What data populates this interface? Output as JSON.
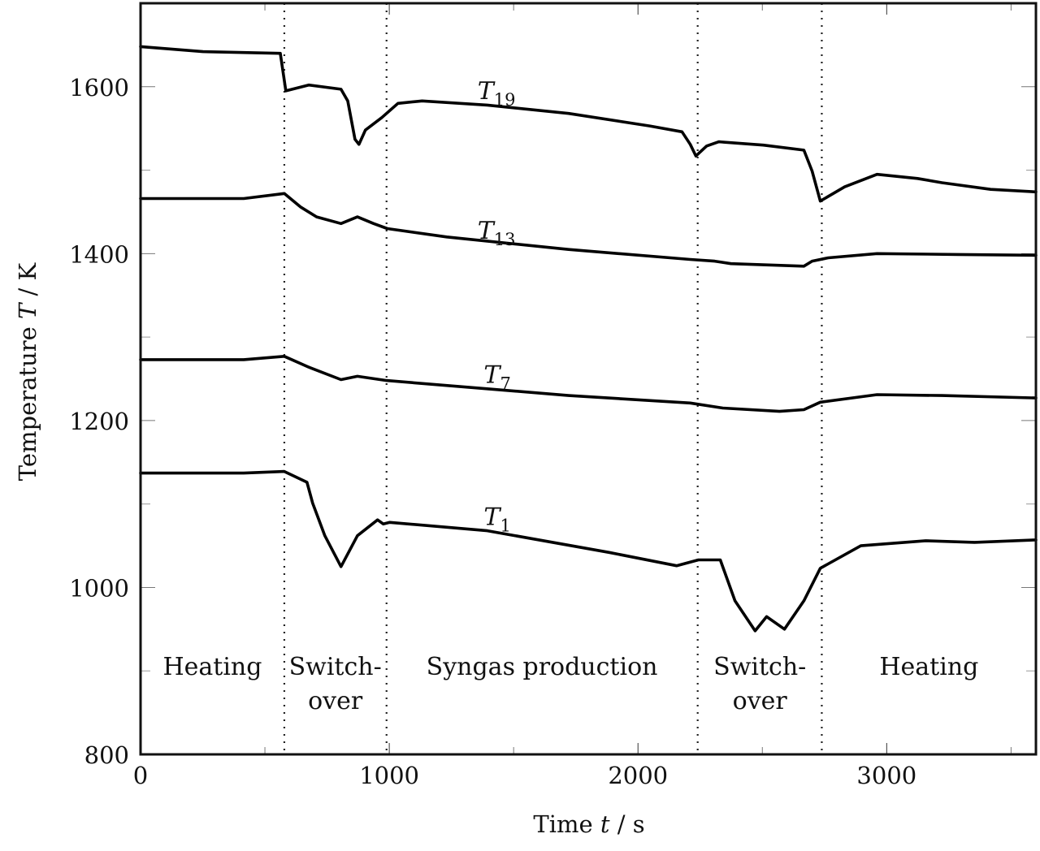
{
  "chart_data": {
    "type": "line",
    "title": "",
    "xlabel": {
      "prefix": "Time ",
      "var": "t",
      "suffix": " / s"
    },
    "ylabel": {
      "prefix": "Temperature ",
      "var": "T",
      "suffix": " / K"
    },
    "xlim": [
      0,
      3600
    ],
    "ylim": [
      800,
      1700
    ],
    "grid": false,
    "x_ticks": [
      0,
      1000,
      2000,
      3000
    ],
    "x_minor_ticks": [
      500,
      1500,
      2500,
      3500
    ],
    "y_ticks": [
      800,
      1000,
      1200,
      1400,
      1600
    ],
    "y_minor_ticks": [
      900,
      1100,
      1300,
      1500,
      1700
    ],
    "phase_boundaries": [
      578,
      989,
      2240,
      2739
    ],
    "phases": [
      {
        "lines": [
          "Heating"
        ],
        "t": 289,
        "T": 905
      },
      {
        "lines": [
          "Switch-",
          "over"
        ],
        "t": 783,
        "T": 905
      },
      {
        "lines": [
          "Syngas production"
        ],
        "t": 1614,
        "T": 905
      },
      {
        "lines": [
          "Switch-",
          "over"
        ],
        "t": 2490,
        "T": 905
      },
      {
        "lines": [
          "Heating"
        ],
        "t": 3170,
        "T": 905
      }
    ],
    "series": [
      {
        "name": "T19",
        "base": "T",
        "sub": "19",
        "label_at": {
          "t": 1355,
          "T": 1585
        },
        "x": [
          0,
          251,
          562,
          584,
          676,
          806,
          833,
          862,
          878,
          904,
          970,
          1035,
          1132,
          1394,
          1721,
          2047,
          2177,
          2210,
          2233,
          2276,
          2325,
          2504,
          2667,
          2700,
          2733,
          2831,
          2961,
          3124,
          3222,
          3418,
          3600
        ],
        "values": [
          1648,
          1642,
          1640,
          1595,
          1602,
          1597,
          1583,
          1537,
          1531,
          1548,
          1563,
          1580,
          1583,
          1578,
          1568,
          1553,
          1546,
          1531,
          1517,
          1529,
          1534,
          1530,
          1524,
          1499,
          1463,
          1480,
          1495,
          1490,
          1485,
          1477,
          1474
        ]
      },
      {
        "name": "T13",
        "base": "T",
        "sub": "13",
        "label_at": {
          "t": 1355,
          "T": 1418
        },
        "x": [
          0,
          415,
          578,
          643,
          708,
          806,
          872,
          937,
          992,
          1231,
          1721,
          2210,
          2308,
          2374,
          2667,
          2700,
          2765,
          2961,
          3288,
          3600
        ],
        "values": [
          1466,
          1466,
          1472,
          1456,
          1444,
          1436,
          1444,
          1436,
          1430,
          1420,
          1405,
          1393,
          1391,
          1388,
          1385,
          1391,
          1395,
          1400,
          1399,
          1398
        ]
      },
      {
        "name": "T7",
        "base": "T",
        "sub": "7",
        "label_at": {
          "t": 1380,
          "T": 1245
        },
        "x": [
          0,
          415,
          578,
          676,
          806,
          872,
          989,
          1394,
          1721,
          2210,
          2341,
          2569,
          2667,
          2733,
          2961,
          3222,
          3600
        ],
        "values": [
          1273,
          1273,
          1277,
          1264,
          1249,
          1253,
          1248,
          1238,
          1230,
          1221,
          1215,
          1211,
          1213,
          1222,
          1231,
          1230,
          1227
        ]
      },
      {
        "name": "T1",
        "base": "T",
        "sub": "1",
        "label_at": {
          "t": 1380,
          "T": 1075
        },
        "x": [
          0,
          415,
          578,
          669,
          692,
          741,
          806,
          872,
          953,
          976,
          1002,
          1394,
          1884,
          2155,
          2243,
          2331,
          2390,
          2471,
          2517,
          2589,
          2667,
          2733,
          2896,
          3157,
          3353,
          3600
        ],
        "values": [
          1137,
          1137,
          1139,
          1126,
          1101,
          1062,
          1025,
          1062,
          1081,
          1076,
          1078,
          1068,
          1042,
          1026,
          1033,
          1033,
          984,
          948,
          965,
          950,
          984,
          1023,
          1050,
          1056,
          1054,
          1057
        ]
      }
    ]
  }
}
